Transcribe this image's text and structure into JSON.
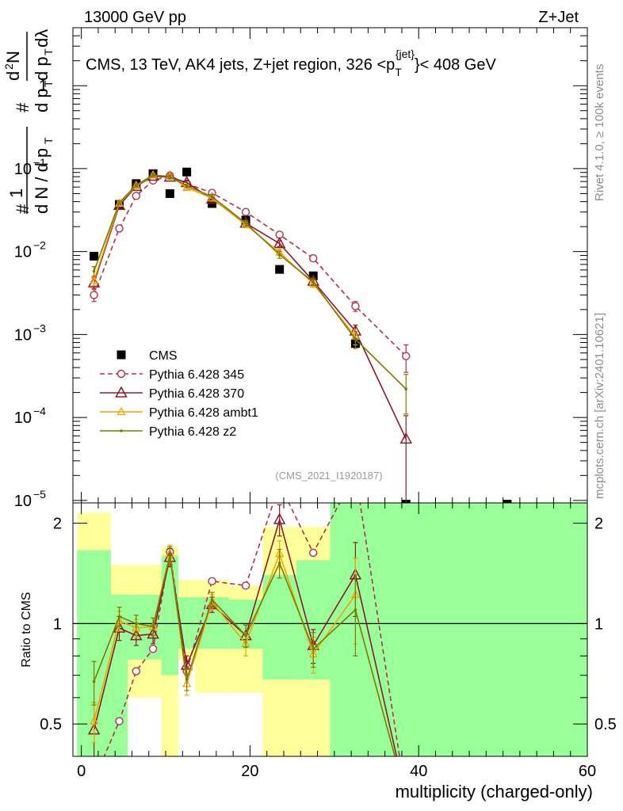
{
  "header": {
    "left": "13000 GeV pp",
    "right": "Z+Jet",
    "rivet_note": "Rivet 4.1.0, ≥ 100k events",
    "site_note": "mcplots.cern.ch [arXiv:2401.10621]",
    "analysis_id": "(CMS_2021_I1920187)"
  },
  "chart_data": [
    {
      "type": "line",
      "panel": "main",
      "title_main": "CMS, 13 TeV, AK4 jets, Z+jet region, 326 <p",
      "title_sub": "T",
      "title_sup": "{jet}",
      "title_end": "}< 408 GeV",
      "ylabel": "1/dN/dpT dN/dpT dλ (d²N)",
      "yscale": "log",
      "ylim": [
        1e-05,
        5
      ],
      "xlim": [
        -1,
        60
      ],
      "y_tick_labels": [
        {
          "value": 1e-05,
          "base": "10",
          "exp": "−5"
        },
        {
          "value": 0.0001,
          "base": "10",
          "exp": "−4"
        },
        {
          "value": 0.001,
          "base": "10",
          "exp": "−3"
        },
        {
          "value": 0.01,
          "base": "10",
          "exp": "−2"
        },
        {
          "value": 0.1,
          "base": "10",
          "exp": "−1"
        },
        {
          "value": 1,
          "base": "1",
          "exp": ""
        }
      ],
      "series": [
        {
          "name": "CMS",
          "color": "#000000",
          "style": "points",
          "x": [
            1.5,
            4.5,
            6.5,
            8.5,
            10.5,
            12.5,
            15.5,
            19.5,
            23.5,
            27.5,
            32.5,
            38.5,
            50.5
          ],
          "y": [
            0.0088,
            0.037,
            0.066,
            0.087,
            0.05,
            0.091,
            0.038,
            0.024,
            0.0061,
            0.0051,
            0.00078,
            9e-06,
            9e-06
          ]
        },
        {
          "name": "Pythia 6.428 345",
          "color": "#b0304f",
          "style": "dashed-circle",
          "x": [
            1.5,
            4.5,
            6.5,
            8.5,
            10.5,
            12.5,
            15.5,
            19.5,
            23.5,
            27.5,
            32.5,
            38.5
          ],
          "y": [
            0.003,
            0.019,
            0.047,
            0.072,
            0.082,
            0.066,
            0.051,
            0.03,
            0.016,
            0.0083,
            0.0022,
            0.00055
          ],
          "yerr": [
            0.0005,
            0.0015,
            0.003,
            0.004,
            0.004,
            0.003,
            0.003,
            0.002,
            0.001,
            0.0006,
            0.0003,
            0.0002
          ]
        },
        {
          "name": "Pythia 6.428 370",
          "color": "#8b1a2b",
          "style": "triangle",
          "x": [
            1.5,
            4.5,
            6.5,
            8.5,
            10.5,
            12.5,
            15.5,
            19.5,
            23.5,
            27.5,
            32.5,
            38.5
          ],
          "y": [
            0.0042,
            0.036,
            0.061,
            0.081,
            0.079,
            0.068,
            0.043,
            0.022,
            0.0125,
            0.0044,
            0.0011,
            5.5e-05
          ],
          "yerr": [
            0.0006,
            0.002,
            0.003,
            0.004,
            0.004,
            0.003,
            0.003,
            0.0015,
            0.001,
            0.0004,
            0.0002,
            5e-05
          ]
        },
        {
          "name": "Pythia 6.428 ambt1",
          "color": "#f0a500",
          "style": "small-triangle",
          "x": [
            1.5,
            4.5,
            6.5,
            8.5,
            10.5,
            12.5,
            15.5,
            19.5,
            23.5,
            27.5,
            32.5
          ],
          "y": [
            0.0045,
            0.038,
            0.062,
            0.083,
            0.081,
            0.059,
            0.044,
            0.021,
            0.0098,
            0.0041,
            0.00095
          ],
          "yerr": [
            0.0006,
            0.002,
            0.003,
            0.004,
            0.004,
            0.003,
            0.003,
            0.0015,
            0.0009,
            0.0004,
            0.0002
          ]
        },
        {
          "name": "Pythia 6.428 z2",
          "color": "#7b7b00",
          "style": "dot",
          "x": [
            1.5,
            4.5,
            6.5,
            8.5,
            10.5,
            12.5,
            15.5,
            19.5,
            23.5,
            27.5,
            32.5,
            38.5
          ],
          "y": [
            0.0058,
            0.039,
            0.063,
            0.084,
            0.08,
            0.062,
            0.046,
            0.022,
            0.0092,
            0.0043,
            0.00088,
            0.00022
          ],
          "yerr": [
            0.0008,
            0.002,
            0.003,
            0.004,
            0.004,
            0.003,
            0.003,
            0.0015,
            0.0009,
            0.0004,
            0.0002,
            0.00011
          ]
        }
      ]
    },
    {
      "type": "line",
      "panel": "ratio",
      "ylabel": "Ratio to CMS",
      "xlabel": "multiplicity (charged-only)",
      "yscale": "log",
      "ylim": [
        0.4,
        2.3
      ],
      "xlim": [
        -1,
        60
      ],
      "x_ticks": [
        0,
        20,
        40,
        60
      ],
      "y_ticks": [
        0.5,
        1,
        2
      ],
      "reference_line": 1,
      "bands": [
        {
          "x0": -0.5,
          "x1": 3.5,
          "green": [
            0.38,
            1.66
          ],
          "yellow": [
            0.38,
            2.15
          ]
        },
        {
          "x0": 3.5,
          "x1": 5.5,
          "green": [
            0.38,
            1.22
          ],
          "yellow": [
            0.38,
            1.5
          ]
        },
        {
          "x0": 5.5,
          "x1": 9.5,
          "green": [
            0.78,
            1.22
          ],
          "yellow": [
            0.6,
            1.5
          ]
        },
        {
          "x0": 9.5,
          "x1": 11.5,
          "green": [
            0.7,
            1.6
          ],
          "yellow": [
            0.38,
            1.7
          ]
        },
        {
          "x0": 11.5,
          "x1": 13.5,
          "green": [
            0.84,
            1.2
          ],
          "yellow": [
            0.78,
            1.35
          ]
        },
        {
          "x0": 13.5,
          "x1": 17.5,
          "green": [
            0.84,
            1.2
          ],
          "yellow": [
            0.62,
            1.35
          ]
        },
        {
          "x0": 17.5,
          "x1": 21.5,
          "green": [
            0.84,
            1.18
          ],
          "yellow": [
            0.62,
            1.3
          ]
        },
        {
          "x0": 21.5,
          "x1": 25.5,
          "green": [
            0.68,
            1.4
          ],
          "yellow": [
            0.38,
            1.95
          ]
        },
        {
          "x0": 25.5,
          "x1": 29.5,
          "green": [
            0.68,
            1.55
          ],
          "yellow": [
            0.38,
            1.95
          ]
        },
        {
          "x0": 29.5,
          "x1": 60,
          "green": [
            0.38,
            2.3
          ],
          "yellow": [
            0.38,
            2.3
          ]
        }
      ],
      "series": [
        {
          "name": "Pythia 6.428 345",
          "color": "#b0304f",
          "style": "dashed-circle",
          "x": [
            1.5,
            4.5,
            6.5,
            8.5,
            10.5,
            12.5,
            15.5,
            19.5,
            23.5,
            27.5,
            32.5,
            38.5
          ],
          "y": [
            0.34,
            0.51,
            0.72,
            0.84,
            1.64,
            0.72,
            1.34,
            1.3,
            2.62,
            1.63,
            2.82,
            0.3
          ]
        },
        {
          "name": "Pythia 6.428 370",
          "color": "#8b1a2b",
          "style": "triangle",
          "x": [
            1.5,
            4.5,
            6.5,
            8.5,
            10.5,
            12.5,
            15.5,
            19.5,
            23.5,
            27.5,
            32.5,
            38.5
          ],
          "y": [
            0.48,
            0.97,
            0.92,
            0.93,
            1.58,
            0.75,
            1.14,
            0.92,
            2.05,
            0.86,
            1.4,
            0.3
          ],
          "yerr": [
            0.1,
            0.08,
            0.06,
            0.06,
            0.1,
            0.05,
            0.06,
            0.07,
            0.22,
            0.1,
            0.35,
            0
          ]
        },
        {
          "name": "Pythia 6.428 ambt1",
          "color": "#f0a500",
          "style": "small-triangle",
          "x": [
            1.5,
            4.5,
            6.5,
            8.5,
            10.5,
            12.5,
            15.5,
            19.5,
            23.5,
            27.5,
            32.5
          ],
          "y": [
            0.51,
            1.02,
            0.97,
            0.98,
            1.62,
            0.66,
            1.16,
            0.87,
            1.62,
            0.81,
            1.22
          ],
          "yerr": [
            0.07,
            0.07,
            0.06,
            0.06,
            0.1,
            0.05,
            0.06,
            0.07,
            0.15,
            0.1,
            0.35
          ]
        },
        {
          "name": "Pythia 6.428 z2",
          "color": "#7b7b00",
          "style": "dot",
          "x": [
            1.5,
            4.5,
            6.5,
            8.5,
            10.5,
            12.5,
            15.5,
            19.5,
            23.5,
            27.5,
            32.5,
            38.5
          ],
          "y": [
            0.67,
            1.05,
            1.0,
            0.98,
            1.6,
            0.68,
            1.18,
            0.92,
            1.52,
            0.84,
            1.1,
            0.3
          ],
          "yerr": [
            0.1,
            0.07,
            0.06,
            0.06,
            0.1,
            0.05,
            0.06,
            0.07,
            0.15,
            0.1,
            0.3,
            0
          ]
        }
      ]
    }
  ]
}
